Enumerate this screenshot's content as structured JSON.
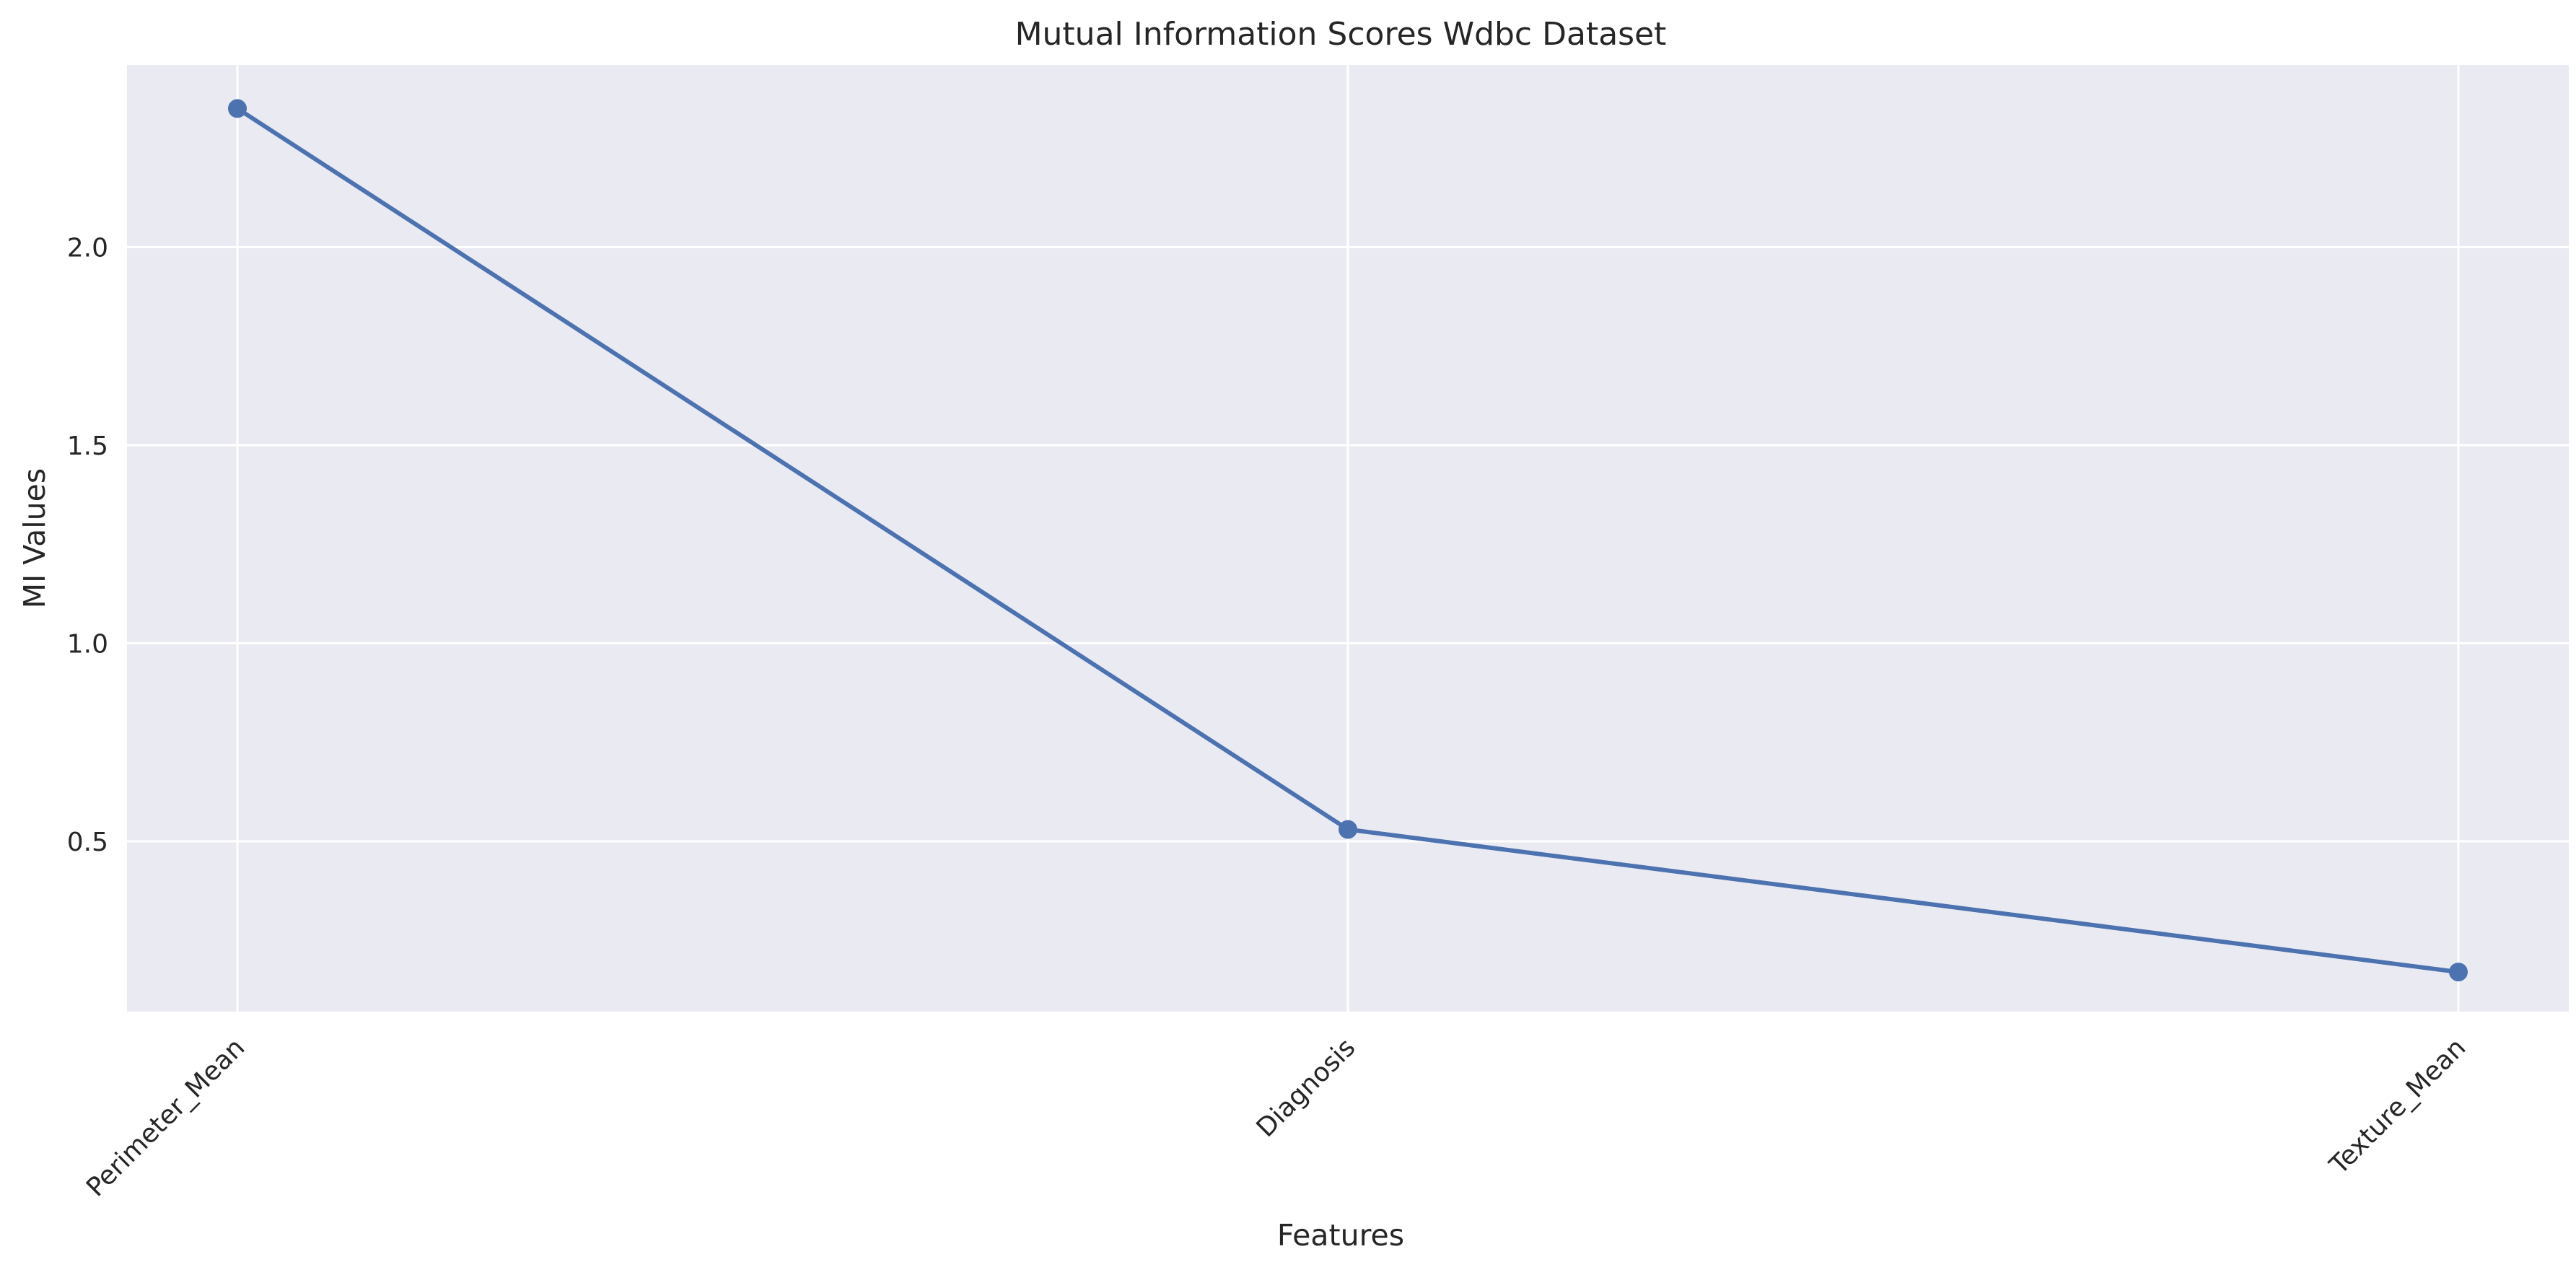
{
  "chart_data": {
    "type": "line",
    "title": "Mutual Information Scores Wdbc Dataset",
    "xlabel": "Features",
    "ylabel": "MI Values",
    "categories": [
      "Perimeter_Mean",
      "Diagnosis",
      "Texture_Mean"
    ],
    "series": [
      {
        "values": [
          2.35,
          0.53,
          0.17
        ]
      }
    ],
    "ylim": [
      0.07,
      2.46
    ],
    "yticks": [
      "0.5",
      "1.0",
      "1.5",
      "2.0"
    ],
    "grid": true,
    "legend": "none",
    "colors": {
      "line": "#4c72b0",
      "plot_background": "#eaeaf2",
      "grid": "#ffffff",
      "text": "#262626"
    }
  }
}
